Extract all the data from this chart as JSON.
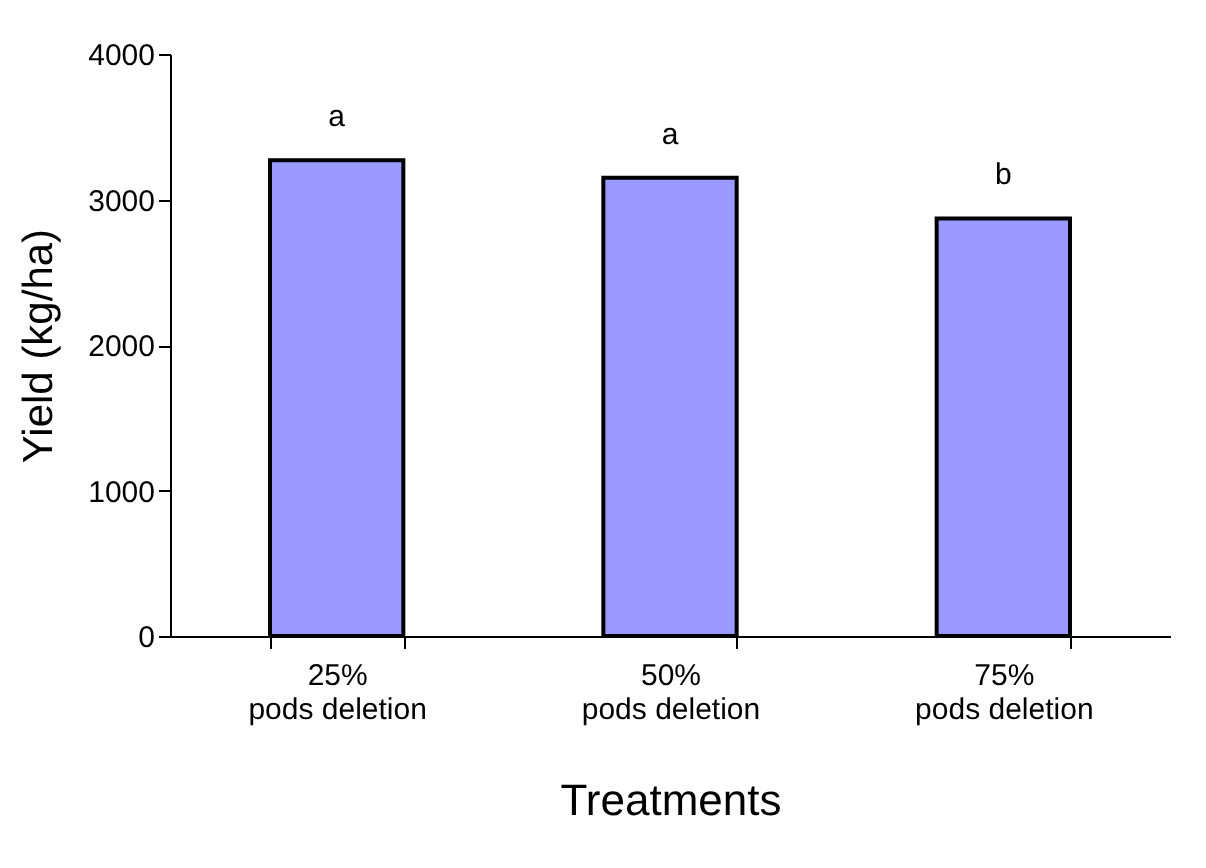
{
  "chart_data": {
    "type": "bar",
    "xlabel": "Treatments",
    "ylabel": "Yield (kg/ha)",
    "categories": [
      "25%\npods deletion",
      "50%\npods deletion",
      "75%\npods deletion"
    ],
    "values": [
      3270,
      3150,
      2870
    ],
    "color": "#9999ff",
    "ylim": [
      0,
      4000
    ],
    "yticks": [
      0,
      1000,
      2000,
      3000,
      4000
    ],
    "grid": false,
    "annotations": [
      {
        "text": "a",
        "x": "25%\npods deletion",
        "y": 3270
      },
      {
        "text": "a",
        "x": "50%\npods deletion",
        "y": 3150
      },
      {
        "text": "b",
        "x": "75%\npods deletion",
        "y": 2870
      }
    ]
  }
}
